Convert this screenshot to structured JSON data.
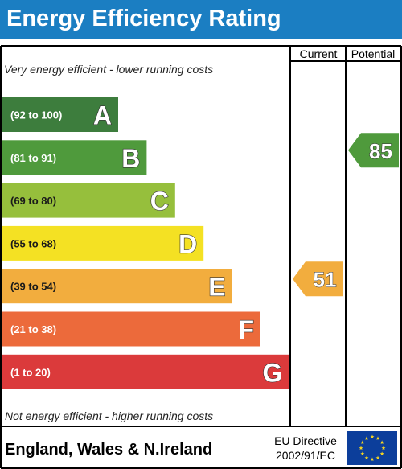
{
  "title": "Energy Efficiency Rating",
  "columns": {
    "current": "Current",
    "potential": "Potential"
  },
  "top_note": "Very energy efficient - lower running costs",
  "bottom_note": "Not energy efficient - higher running costs",
  "footer": {
    "region": "England, Wales & N.Ireland",
    "directive_line1": "EU Directive",
    "directive_line2": "2002/91/EC",
    "flag_icon": "eu-flag-icon"
  },
  "chart_data": {
    "type": "bar",
    "title": "Energy Efficiency Rating",
    "categories": [
      "A",
      "B",
      "C",
      "D",
      "E",
      "F",
      "G"
    ],
    "bands": [
      {
        "letter": "A",
        "range": "(92 to 100)",
        "min": 92,
        "max": 100,
        "color": "#3d7d3d"
      },
      {
        "letter": "B",
        "range": "(81 to 91)",
        "min": 81,
        "max": 91,
        "color": "#4f9a3c"
      },
      {
        "letter": "C",
        "range": "(69 to 80)",
        "min": 69,
        "max": 80,
        "color": "#96bf3c"
      },
      {
        "letter": "D",
        "range": "(55 to 68)",
        "min": 55,
        "max": 68,
        "color": "#f4e123"
      },
      {
        "letter": "E",
        "range": "(39 to 54)",
        "min": 39,
        "max": 54,
        "color": "#f2ad3e"
      },
      {
        "letter": "F",
        "range": "(21 to 38)",
        "min": 21,
        "max": 38,
        "color": "#ec6a3b"
      },
      {
        "letter": "G",
        "range": "(1 to 20)",
        "min": 1,
        "max": 20,
        "color": "#db3a3b"
      }
    ],
    "current": {
      "value": 51,
      "band": "E",
      "color": "#f2ad3e"
    },
    "potential": {
      "value": 85,
      "band": "B",
      "color": "#4f9a3c"
    }
  },
  "colors": {
    "header": "#1b7ec2",
    "eu_flag": "#0c3e9b",
    "eu_stars": "#f7d61f"
  }
}
